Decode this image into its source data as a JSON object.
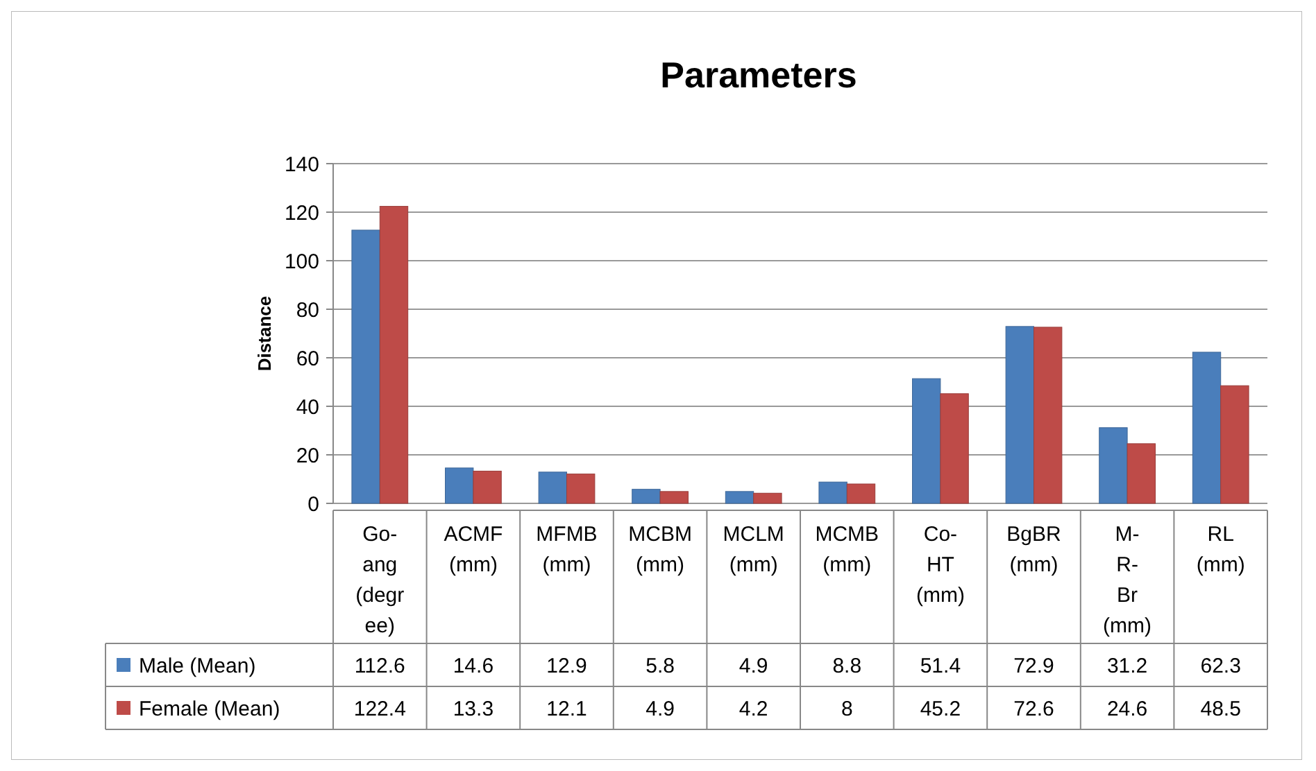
{
  "chart_data": {
    "type": "bar",
    "title": "Parameters",
    "ylabel": "Distance",
    "categories": [
      "Go-ang (degree)",
      "ACMF (mm)",
      "MFMB (mm)",
      "MCBM (mm)",
      "MCLM (mm)",
      "MCMB (mm)",
      "Co-HT (mm)",
      "BgBR (mm)",
      "M-R-Br (mm)",
      "RL (mm)"
    ],
    "series": [
      {
        "name": "Male (Mean)",
        "color": "#4a7ebb",
        "values": [
          112.6,
          14.6,
          12.9,
          5.8,
          4.9,
          8.8,
          51.4,
          72.9,
          31.2,
          62.3
        ]
      },
      {
        "name": "Female (Mean)",
        "color": "#be4b48",
        "values": [
          122.4,
          13.3,
          12.1,
          4.9,
          4.2,
          8,
          45.2,
          72.6,
          24.6,
          48.5
        ]
      }
    ],
    "ylim": [
      0,
      140
    ],
    "yticks": [
      0,
      20,
      40,
      60,
      80,
      100,
      120,
      140
    ],
    "grid": "y",
    "legend": "bottom",
    "data_labels": true
  }
}
